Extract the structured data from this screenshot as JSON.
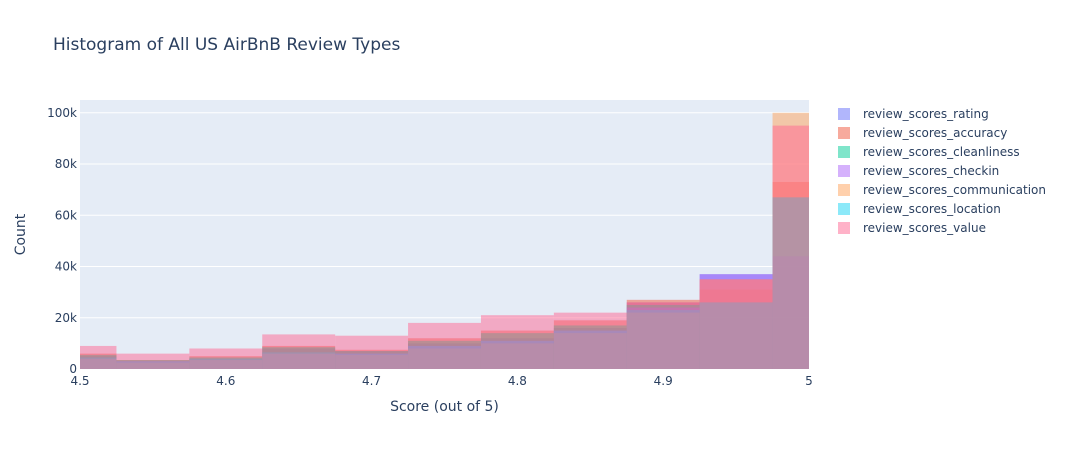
{
  "chart_data": {
    "type": "bar",
    "subtype": "overlaid-histogram",
    "title": "Histogram of All US AirBnB Review Types",
    "xlabel": "Score (out of 5)",
    "ylabel": "Count",
    "xlim": [
      4.5,
      5.0
    ],
    "ylim": [
      0,
      105000
    ],
    "x_ticks": [
      {
        "value": 4.5,
        "label": "4.5"
      },
      {
        "value": 4.6,
        "label": "4.6"
      },
      {
        "value": 4.7,
        "label": "4.7"
      },
      {
        "value": 4.8,
        "label": "4.8"
      },
      {
        "value": 4.9,
        "label": "4.9"
      },
      {
        "value": 5.0,
        "label": "5"
      }
    ],
    "y_ticks": [
      {
        "value": 0,
        "label": "0"
      },
      {
        "value": 20000,
        "label": "20k"
      },
      {
        "value": 40000,
        "label": "40k"
      },
      {
        "value": 60000,
        "label": "60k"
      },
      {
        "value": 80000,
        "label": "80k"
      },
      {
        "value": 100000,
        "label": "100k"
      }
    ],
    "bins": [
      [
        4.5,
        4.525
      ],
      [
        4.525,
        4.575
      ],
      [
        4.575,
        4.625
      ],
      [
        4.625,
        4.675
      ],
      [
        4.675,
        4.725
      ],
      [
        4.725,
        4.775
      ],
      [
        4.775,
        4.825
      ],
      [
        4.825,
        4.875
      ],
      [
        4.875,
        4.925
      ],
      [
        4.925,
        4.975
      ],
      [
        4.975,
        5.0
      ]
    ],
    "opacity": 0.5,
    "grid": true,
    "legend_position": "right",
    "plot_background": "#e5ecf6",
    "series": [
      {
        "name": "review_scores_rating",
        "color": "#636efa",
        "values": [
          5000,
          3000,
          4000,
          8000,
          7000,
          10000,
          12000,
          16000,
          26000,
          37000,
          44000
        ]
      },
      {
        "name": "review_scores_accuracy",
        "color": "#ef553b",
        "values": [
          6000,
          3500,
          5000,
          9000,
          7500,
          12000,
          15000,
          19000,
          27000,
          31000,
          73000
        ]
      },
      {
        "name": "review_scores_cleanliness",
        "color": "#00cc96",
        "values": [
          5500,
          3500,
          4500,
          8500,
          7000,
          11000,
          14000,
          17000,
          25000,
          26000,
          67000
        ]
      },
      {
        "name": "review_scores_checkin",
        "color": "#ab63fa",
        "values": [
          4000,
          3000,
          3500,
          6000,
          6000,
          9000,
          11000,
          15000,
          24000,
          37000,
          44000
        ]
      },
      {
        "name": "review_scores_communication",
        "color": "#ffa15a",
        "values": [
          4000,
          2500,
          3500,
          6000,
          5500,
          8000,
          10000,
          14000,
          22000,
          35000,
          100000
        ]
      },
      {
        "name": "review_scores_location",
        "color": "#19d3f3",
        "values": [
          4500,
          3000,
          4000,
          6500,
          6000,
          9000,
          11000,
          15000,
          23000,
          26000,
          67000
        ]
      },
      {
        "name": "review_scores_value",
        "color": "#ff6692",
        "values": [
          9000,
          6000,
          8000,
          13500,
          13000,
          18000,
          21000,
          22000,
          26000,
          35000,
          95000
        ]
      }
    ]
  }
}
